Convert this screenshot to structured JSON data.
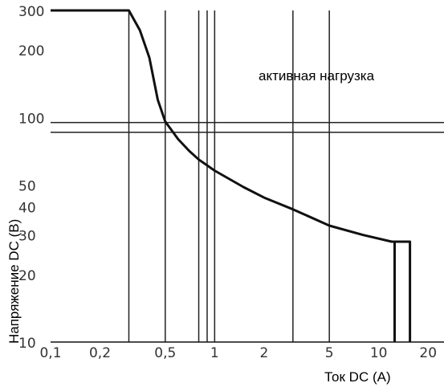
{
  "chart_data": {
    "type": "line",
    "xlabel": "Ток DC (A)",
    "ylabel": "Напряжение DC (В)",
    "annotation": "активная нагрузка",
    "x_scale": "log",
    "y_scale": "log",
    "xlim": [
      0.1,
      25
    ],
    "ylim": [
      10,
      300
    ],
    "x_ticks": [
      {
        "value": 0.1,
        "label": "0,1"
      },
      {
        "value": 0.2,
        "label": "0,2"
      },
      {
        "value": 0.5,
        "label": "0,5"
      },
      {
        "value": 1,
        "label": "1"
      },
      {
        "value": 2,
        "label": "2"
      },
      {
        "value": 5,
        "label": "5"
      },
      {
        "value": 10,
        "label": "10"
      },
      {
        "value": 20,
        "label": "20"
      }
    ],
    "y_ticks": [
      {
        "value": 10,
        "label": "10"
      },
      {
        "value": 20,
        "label": "20"
      },
      {
        "value": 30,
        "label": "30"
      },
      {
        "value": 40,
        "label": "40"
      },
      {
        "value": 50,
        "label": "50"
      },
      {
        "value": 100,
        "label": "100"
      },
      {
        "value": 200,
        "label": "200"
      },
      {
        "value": 300,
        "label": "300"
      }
    ],
    "grid_x": [
      0.3,
      0.5,
      0.8,
      0.9,
      1,
      3,
      5
    ],
    "grid_y": [
      95,
      86
    ],
    "series": [
      {
        "points": [
          {
            "x": 0.1,
            "y": 300
          },
          {
            "x": 0.3,
            "y": 300
          },
          {
            "x": 0.35,
            "y": 245
          },
          {
            "x": 0.4,
            "y": 185
          },
          {
            "x": 0.45,
            "y": 120
          },
          {
            "x": 0.5,
            "y": 96
          },
          {
            "x": 0.6,
            "y": 80
          },
          {
            "x": 0.7,
            "y": 71
          },
          {
            "x": 0.8,
            "y": 65
          },
          {
            "x": 1.0,
            "y": 58
          },
          {
            "x": 1.5,
            "y": 49
          },
          {
            "x": 2,
            "y": 44
          },
          {
            "x": 3,
            "y": 39
          },
          {
            "x": 5,
            "y": 33
          },
          {
            "x": 8,
            "y": 30
          },
          {
            "x": 12,
            "y": 28
          },
          {
            "x": 15.5,
            "y": 28
          },
          {
            "x": 15.5,
            "y": 10
          }
        ]
      },
      {
        "points": [
          {
            "x": 12.5,
            "y": 28
          },
          {
            "x": 12.5,
            "y": 10
          }
        ]
      }
    ]
  }
}
